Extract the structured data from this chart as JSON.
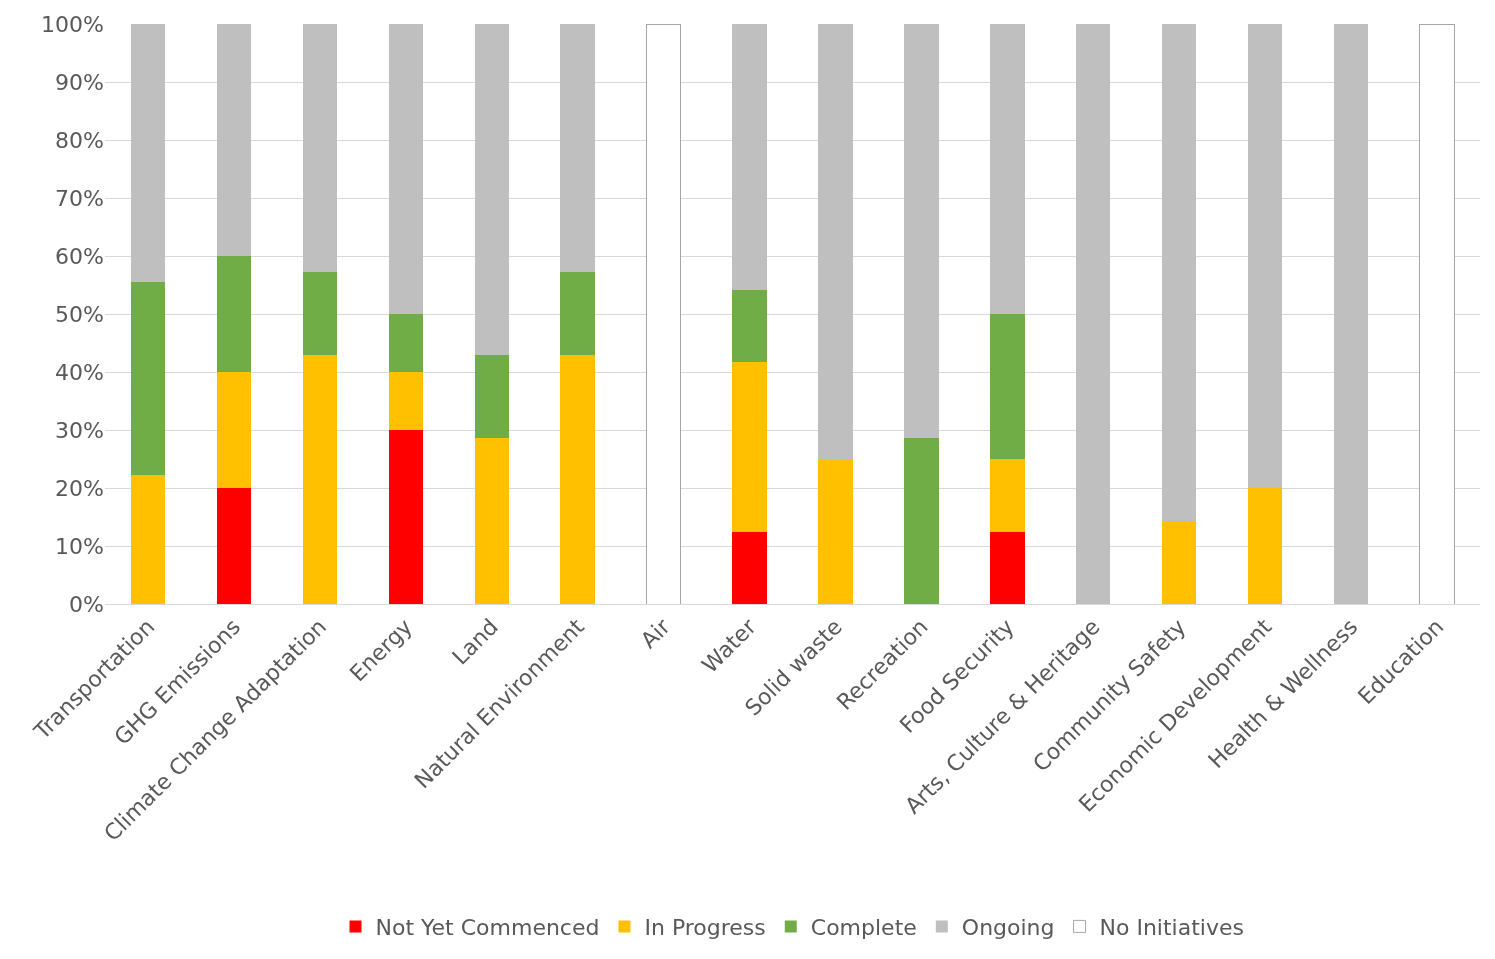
{
  "chart_data": {
    "type": "bar",
    "stacked": true,
    "categories": [
      "Transportation",
      "GHG Emissions",
      "Climate Change Adaptation",
      "Energy",
      "Land",
      "Natural Environment",
      "Air",
      "Water",
      "Solid waste",
      "Recreation",
      "Food Security",
      "Arts, Culture & Heritage",
      "Community Safety",
      "Economic Development",
      "Health & Wellness",
      "Education"
    ],
    "series": [
      {
        "name": "Not Yet Commenced",
        "color": "#ff0000",
        "values": [
          0,
          20,
          0,
          30,
          0,
          0,
          0,
          12.5,
          0,
          0,
          12.5,
          0,
          0,
          0,
          0,
          0
        ]
      },
      {
        "name": "In Progress",
        "color": "#ffc000",
        "values": [
          22.2,
          20,
          42.9,
          10,
          28.6,
          42.9,
          0,
          29.2,
          25,
          0,
          12.5,
          0,
          14.3,
          20,
          0,
          0
        ]
      },
      {
        "name": "Complete",
        "color": "#70ad47",
        "values": [
          33.3,
          20,
          14.3,
          10,
          14.3,
          14.3,
          0,
          12.5,
          0,
          28.6,
          25,
          0,
          0,
          0,
          0,
          0
        ]
      },
      {
        "name": "Ongoing",
        "color": "#bfbfbf",
        "values": [
          44.5,
          40,
          42.8,
          50,
          57.1,
          42.8,
          0,
          45.8,
          75,
          71.4,
          50,
          100,
          85.7,
          80,
          100,
          0
        ]
      },
      {
        "name": "No Initiatives",
        "color": "#ffffff",
        "values": [
          0,
          0,
          0,
          0,
          0,
          0,
          100,
          0,
          0,
          0,
          0,
          0,
          0,
          0,
          0,
          100
        ]
      }
    ],
    "ylim": [
      0,
      100
    ],
    "yticks": [
      {
        "value": 0,
        "label": "0%"
      },
      {
        "value": 10,
        "label": "10%"
      },
      {
        "value": 20,
        "label": "20%"
      },
      {
        "value": 30,
        "label": "30%"
      },
      {
        "value": 40,
        "label": "40%"
      },
      {
        "value": 50,
        "label": "50%"
      },
      {
        "value": 60,
        "label": "60%"
      },
      {
        "value": 70,
        "label": "70%"
      },
      {
        "value": 80,
        "label": "80%"
      },
      {
        "value": 90,
        "label": "90%"
      },
      {
        "value": 100,
        "label": "100%"
      }
    ],
    "grid": "y",
    "legend": "bottom"
  }
}
